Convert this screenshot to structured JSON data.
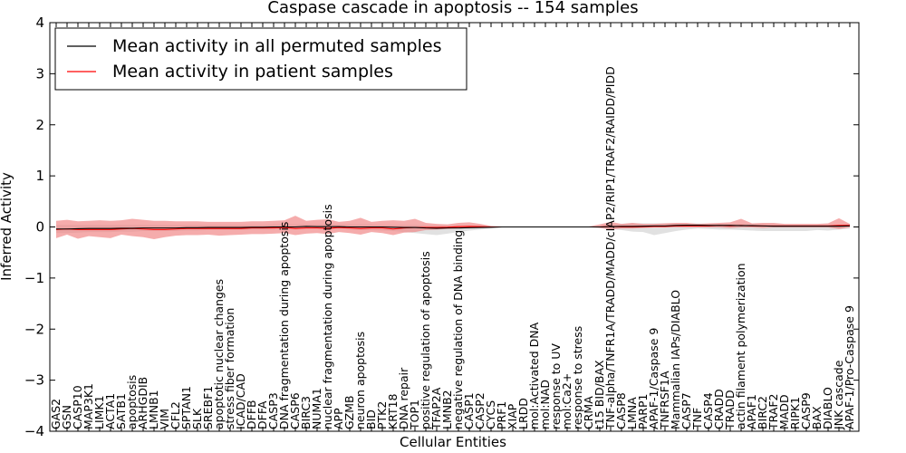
{
  "chart_data": {
    "type": "line",
    "title": "Caspase cascade in apoptosis -- 154 samples",
    "xlabel": "Cellular Entities",
    "ylabel": "Inferred Activity",
    "ylim": [
      -4,
      4
    ],
    "yticks": [
      "4",
      "3",
      "2",
      "1",
      "0",
      "−1",
      "−2",
      "−3",
      "−4"
    ],
    "ytick_values": [
      4,
      3,
      2,
      1,
      0,
      -1,
      -2,
      -3,
      -4
    ],
    "grid": false,
    "legend_position": "top-left",
    "categories": [
      "GAS2",
      "GSN",
      "CASP10",
      "MAP3K1",
      "LIMK1",
      "ACTA1",
      "SATB1",
      "apoptosis",
      "ARHGDIB",
      "LMNB1",
      "VIM",
      "CFL2",
      "SPTAN1",
      "SLK",
      "SREBF1",
      "apoptotic nuclear changes",
      "stress fiber formation",
      "ICAD/CAD",
      "DFFB",
      "DFFA",
      "CASP3",
      "DNA fragmentation during apoptosis",
      "CASP6",
      "BIRC3",
      "NUMA1",
      "nuclear fragmentation during apoptosis",
      "APP",
      "GZMB",
      "neuron apoptosis",
      "BID",
      "PTK2",
      "KRT18",
      "DNA repair",
      "TOP1",
      "positive regulation of apoptosis",
      "TFAP2A",
      "LMNB2",
      "negative regulation of DNA binding",
      "CASP1",
      "CASP2",
      "CYCS",
      "PRF1",
      "XIAP",
      "LRDD",
      "mol:Activated DNA",
      "mol:NAD",
      "response to UV",
      "mol:Ca2+",
      "response to stress",
      "CRMA",
      "t15 BID/BAX",
      "TNF-alpha/TNFR1A/TRADD/MADD/cIAP2/RIP1/TRAF2/RAIDD/PIDD",
      "CASP8",
      "LMNA",
      "PARP1",
      "APAF-1/Caspase 9",
      "TNFRSF1A",
      "Mammalian IAPs/DIABLO",
      "CASP7",
      "TNF",
      "CASP4",
      "CRADD",
      "TRADD",
      "actin filament polymerization",
      "APAF1",
      "BIRC2",
      "TRAF2",
      "MADD",
      "RIPK1",
      "CASP9",
      "BAX",
      "DIABLO",
      "JNK cascade",
      "APAF-1/Pro-Caspase 9"
    ],
    "series": [
      {
        "name": "Mean activity in all permuted samples",
        "color": "#000000",
        "values": [
          -0.04,
          -0.04,
          -0.035,
          -0.03,
          -0.03,
          -0.03,
          -0.025,
          -0.025,
          -0.02,
          -0.02,
          -0.02,
          -0.02,
          -0.015,
          -0.015,
          -0.01,
          -0.01,
          -0.01,
          -0.01,
          -0.005,
          -0.005,
          0,
          0,
          0,
          0.01,
          0.005,
          0.005,
          0.005,
          0,
          0,
          0,
          0,
          -0.005,
          -0.01,
          -0.01,
          -0.02,
          -0.025,
          -0.02,
          -0.02,
          -0.015,
          -0.01,
          -0.005,
          0,
          0,
          0,
          0,
          0,
          0,
          0,
          0,
          0,
          0,
          0.005,
          0.01,
          0.01,
          0.015,
          0.02,
          0.02,
          0.03,
          0.035,
          0.035,
          0.03,
          0.03,
          0.03,
          0.025,
          0.025,
          0.02,
          0.015,
          0.015,
          0.015,
          0.015,
          0.015,
          0.015,
          0.015,
          0.02
        ],
        "lower": [
          -0.12,
          -0.12,
          -0.11,
          -0.1,
          -0.1,
          -0.1,
          -0.09,
          -0.09,
          -0.08,
          -0.08,
          -0.08,
          -0.08,
          -0.07,
          -0.07,
          -0.06,
          -0.06,
          -0.06,
          -0.06,
          -0.05,
          -0.05,
          -0.05,
          -0.04,
          -0.04,
          -0.03,
          -0.03,
          -0.03,
          -0.04,
          -0.05,
          -0.06,
          -0.06,
          -0.07,
          -0.08,
          -0.1,
          -0.12,
          -0.14,
          -0.16,
          -0.13,
          -0.1,
          -0.07,
          -0.05,
          -0.03,
          -0.01,
          -0.005,
          -0.005,
          -0.005,
          -0.005,
          -0.005,
          -0.005,
          -0.005,
          -0.01,
          -0.02,
          -0.04,
          -0.06,
          -0.09,
          -0.1,
          -0.16,
          -0.12,
          -0.08,
          -0.05,
          -0.03,
          -0.04,
          -0.05,
          -0.05,
          -0.06,
          -0.07,
          -0.08,
          -0.08,
          -0.08,
          -0.08,
          -0.08,
          -0.06,
          -0.07,
          -0.05,
          -0.03
        ],
        "upper": [
          0.04,
          0.04,
          0.04,
          0.04,
          0.04,
          0.04,
          0.04,
          0.04,
          0.04,
          0.04,
          0.04,
          0.04,
          0.04,
          0.04,
          0.04,
          0.04,
          0.04,
          0.04,
          0.04,
          0.04,
          0.05,
          0.05,
          0.05,
          0.05,
          0.05,
          0.05,
          0.05,
          0.05,
          0.05,
          0.05,
          0.04,
          0.04,
          0.04,
          0.04,
          0.03,
          0.03,
          0.03,
          0.03,
          0.03,
          0.03,
          0.02,
          0.01,
          0.005,
          0.005,
          0.005,
          0.005,
          0.005,
          0.005,
          0.005,
          0.01,
          0.02,
          0.04,
          0.06,
          0.07,
          0.07,
          0.07,
          0.07,
          0.07,
          0.07,
          0.07,
          0.06,
          0.06,
          0.06,
          0.06,
          0.05,
          0.05,
          0.05,
          0.05,
          0.05,
          0.05,
          0.05,
          0.05,
          0.05,
          0.06
        ]
      },
      {
        "name": "Mean activity in patient samples",
        "color": "#ff0000",
        "band_color": "#f08080",
        "values": [
          -0.05,
          -0.04,
          -0.05,
          -0.05,
          -0.05,
          -0.05,
          -0.04,
          -0.03,
          -0.04,
          -0.05,
          -0.05,
          -0.04,
          -0.03,
          -0.03,
          -0.03,
          -0.03,
          -0.03,
          -0.03,
          -0.02,
          -0.02,
          -0.02,
          -0.01,
          -0.03,
          -0.02,
          -0.02,
          -0.03,
          -0.01,
          -0.02,
          -0.03,
          -0.02,
          -0.02,
          -0.04,
          -0.02,
          -0.01,
          -0.01,
          -0.01,
          -0.005,
          0.005,
          0.01,
          0.005,
          0,
          0,
          0,
          0,
          0,
          0,
          0,
          0,
          0,
          0,
          0,
          0.01,
          0,
          0,
          0.005,
          0.01,
          0.01,
          0.02,
          0.02,
          0.02,
          0.02,
          0.03,
          0.02,
          0.03,
          0.02,
          0.02,
          0.02,
          0.02,
          0.02,
          0.02,
          0.02,
          0.02,
          0.03,
          0.03
        ],
        "lower": [
          -0.22,
          -0.15,
          -0.23,
          -0.18,
          -0.2,
          -0.22,
          -0.15,
          -0.18,
          -0.2,
          -0.24,
          -0.2,
          -0.17,
          -0.16,
          -0.16,
          -0.15,
          -0.17,
          -0.16,
          -0.15,
          -0.14,
          -0.14,
          -0.13,
          -0.12,
          -0.16,
          -0.13,
          -0.12,
          -0.14,
          -0.1,
          -0.12,
          -0.15,
          -0.1,
          -0.12,
          -0.16,
          -0.11,
          -0.1,
          -0.06,
          -0.05,
          -0.04,
          -0.03,
          -0.02,
          -0.01,
          -0.005,
          -0.005,
          -0.005,
          -0.005,
          -0.005,
          -0.005,
          -0.005,
          -0.005,
          -0.005,
          -0.005,
          -0.02,
          -0.05,
          -0.03,
          -0.03,
          -0.02,
          -0.01,
          -0.01,
          -0.01,
          -0.01,
          -0.01,
          -0.01,
          -0.01,
          -0.02,
          -0.01,
          -0.01,
          -0.02,
          -0.01,
          -0.01,
          -0.01,
          -0.01,
          -0.01,
          -0.01,
          -0.04,
          -0.01
        ],
        "upper": [
          0.12,
          0.14,
          0.11,
          0.12,
          0.13,
          0.12,
          0.13,
          0.16,
          0.14,
          0.12,
          0.12,
          0.11,
          0.11,
          0.11,
          0.1,
          0.1,
          0.1,
          0.1,
          0.11,
          0.11,
          0.12,
          0.13,
          0.22,
          0.12,
          0.14,
          0.15,
          0.1,
          0.12,
          0.18,
          0.1,
          0.12,
          0.13,
          0.12,
          0.16,
          0.08,
          0.06,
          0.05,
          0.08,
          0.09,
          0.06,
          0.02,
          0.01,
          0.005,
          0.005,
          0.005,
          0.005,
          0.005,
          0.005,
          0.005,
          0.01,
          0.05,
          0.1,
          0.06,
          0.08,
          0.06,
          0.06,
          0.07,
          0.08,
          0.08,
          0.06,
          0.07,
          0.08,
          0.09,
          0.16,
          0.07,
          0.08,
          0.08,
          0.06,
          0.06,
          0.06,
          0.06,
          0.07,
          0.17,
          0.06
        ]
      }
    ]
  }
}
